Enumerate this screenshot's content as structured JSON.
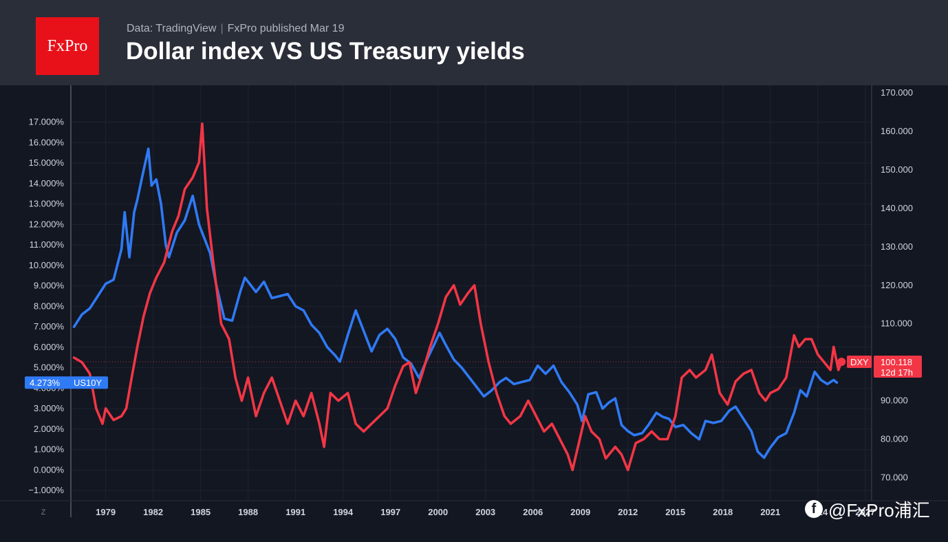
{
  "header": {
    "logo": "FxPro",
    "source": "Data: TradingView",
    "published": "FxPro published Mar 19",
    "title": "Dollar index VS US Treasury yields"
  },
  "watermark": {
    "text": "@FxPro浦汇",
    "icon": "facebook-icon"
  },
  "zoom_button": "Z",
  "chart_data": {
    "type": "line",
    "title": "Dollar index VS US Treasury yields",
    "left_axis": {
      "ticks": [
        "17.000%",
        "16.000%",
        "15.000%",
        "14.000%",
        "13.000%",
        "12.000%",
        "11.000%",
        "10.000%",
        "9.000%",
        "8.000%",
        "7.000%",
        "6.000%",
        "5.000%",
        "4.000%",
        "3.000%",
        "2.000%",
        "1.000%",
        "0.000%",
        "−1.000%"
      ],
      "range": [
        -1.5,
        18.8
      ]
    },
    "right_axis": {
      "ticks": [
        "170.000",
        "160.000",
        "150.000",
        "140.000",
        "130.000",
        "120.000",
        "110.000",
        "100.000",
        "90.000",
        "80.000",
        "70.000"
      ],
      "range": [
        64,
        172
      ]
    },
    "x_ticks": [
      "1979",
      "1982",
      "1985",
      "1988",
      "1991",
      "1994",
      "1997",
      "2000",
      "2003",
      "2006",
      "2009",
      "2012",
      "2015",
      "2018",
      "2021",
      "2024",
      "2027"
    ],
    "x_range": [
      1976.8,
      2027.4
    ],
    "reference_line_value": 100.118,
    "series": [
      {
        "name": "US10Y",
        "color": "#2f7af5",
        "axis": "left",
        "last_label": "4.273%",
        "x": [
          1977.0,
          1977.5,
          1978.0,
          1978.5,
          1979.0,
          1979.5,
          1980.0,
          1980.2,
          1980.5,
          1980.8,
          1981.0,
          1981.3,
          1981.7,
          1981.9,
          1982.2,
          1982.5,
          1982.8,
          1983.0,
          1983.5,
          1984.0,
          1984.5,
          1984.9,
          1985.3,
          1985.6,
          1986.0,
          1986.5,
          1987.0,
          1987.5,
          1987.8,
          1988.5,
          1989.0,
          1989.5,
          1990.0,
          1990.5,
          1991.0,
          1991.5,
          1992.0,
          1992.5,
          1993.0,
          1993.5,
          1993.8,
          1994.3,
          1994.8,
          1995.3,
          1995.8,
          1996.3,
          1996.8,
          1997.3,
          1997.8,
          1998.3,
          1998.8,
          1999.3,
          1999.8,
          2000.1,
          2000.5,
          2001.0,
          2001.5,
          2002.0,
          2002.5,
          2002.9,
          2003.4,
          2003.9,
          2004.3,
          2004.8,
          2005.3,
          2005.8,
          2006.3,
          2006.8,
          2007.3,
          2007.8,
          2008.3,
          2008.8,
          2009.1,
          2009.5,
          2010.0,
          2010.4,
          2010.8,
          2011.2,
          2011.6,
          2012.0,
          2012.4,
          2012.9,
          2013.3,
          2013.8,
          2014.2,
          2014.6,
          2015.0,
          2015.5,
          2016.0,
          2016.5,
          2016.9,
          2017.4,
          2017.9,
          2018.4,
          2018.8,
          2019.3,
          2019.8,
          2020.2,
          2020.6,
          2021.0,
          2021.5,
          2022.0,
          2022.5,
          2022.9,
          2023.3,
          2023.8,
          2024.2,
          2024.6,
          2025.0,
          2025.2
        ],
        "values": [
          7.0,
          7.6,
          7.9,
          8.5,
          9.1,
          9.3,
          10.8,
          12.6,
          10.4,
          12.6,
          13.2,
          14.3,
          15.7,
          13.9,
          14.2,
          13.0,
          11.0,
          10.4,
          11.6,
          12.2,
          13.4,
          12.0,
          11.2,
          10.6,
          9.0,
          7.4,
          7.3,
          8.7,
          9.4,
          8.7,
          9.2,
          8.4,
          8.5,
          8.6,
          8.0,
          7.8,
          7.1,
          6.7,
          6.0,
          5.6,
          5.3,
          6.6,
          7.8,
          6.8,
          5.8,
          6.6,
          6.9,
          6.4,
          5.5,
          5.2,
          4.5,
          5.4,
          6.2,
          6.7,
          6.1,
          5.4,
          5.0,
          4.5,
          4.0,
          3.6,
          3.9,
          4.3,
          4.5,
          4.2,
          4.3,
          4.4,
          5.1,
          4.7,
          5.1,
          4.3,
          3.8,
          3.2,
          2.4,
          3.7,
          3.8,
          3.0,
          3.3,
          3.5,
          2.2,
          1.9,
          1.7,
          1.8,
          2.2,
          2.8,
          2.6,
          2.5,
          2.1,
          2.2,
          1.8,
          1.5,
          2.4,
          2.3,
          2.4,
          2.9,
          3.1,
          2.5,
          1.9,
          0.9,
          0.6,
          1.1,
          1.6,
          1.8,
          2.8,
          3.9,
          3.6,
          4.8,
          4.4,
          4.2,
          4.4,
          4.273
        ]
      },
      {
        "name": "DXY",
        "color": "#f23645",
        "axis": "right",
        "last_label": "100.118",
        "countdown": "12d 17h",
        "x": [
          1977.0,
          1977.5,
          1978.0,
          1978.4,
          1978.8,
          1979.0,
          1979.5,
          1980.0,
          1980.3,
          1980.6,
          1981.0,
          1981.4,
          1981.8,
          1982.2,
          1982.7,
          1983.2,
          1983.6,
          1984.0,
          1984.5,
          1984.9,
          1985.1,
          1985.4,
          1985.8,
          1986.3,
          1986.8,
          1987.2,
          1987.6,
          1988.0,
          1988.5,
          1989.0,
          1989.5,
          1990.0,
          1990.5,
          1991.0,
          1991.5,
          1992.0,
          1992.5,
          1992.8,
          1993.2,
          1993.7,
          1994.3,
          1994.8,
          1995.3,
          1995.8,
          1996.3,
          1996.8,
          1997.3,
          1997.8,
          1998.2,
          1998.6,
          1999.0,
          1999.5,
          2000.0,
          2000.5,
          2001.0,
          2001.4,
          2001.9,
          2002.3,
          2002.7,
          2003.2,
          2003.7,
          2004.2,
          2004.6,
          2005.2,
          2005.7,
          2006.2,
          2006.7,
          2007.2,
          2007.7,
          2008.2,
          2008.5,
          2008.9,
          2009.3,
          2009.7,
          2010.2,
          2010.6,
          2011.2,
          2011.6,
          2012.0,
          2012.5,
          2013.0,
          2013.5,
          2014.0,
          2014.5,
          2015.0,
          2015.4,
          2015.9,
          2016.3,
          2016.9,
          2017.3,
          2017.8,
          2018.3,
          2018.8,
          2019.3,
          2019.8,
          2020.3,
          2020.7,
          2021.0,
          2021.5,
          2022.0,
          2022.5,
          2022.8,
          2023.2,
          2023.6,
          2024.0,
          2024.4,
          2024.8,
          2025.0,
          2025.3,
          2025.5
        ],
        "values": [
          101.2,
          100,
          97,
          88,
          84,
          88,
          85,
          86,
          88,
          95,
          104,
          112,
          118,
          122,
          126,
          134,
          138,
          145,
          148,
          152,
          162,
          140,
          126,
          110,
          106,
          96,
          90,
          96,
          86,
          92,
          96,
          90,
          84,
          90,
          86,
          92,
          84,
          78,
          92,
          90,
          92,
          84,
          82,
          84,
          86,
          88,
          94,
          99,
          100,
          92,
          97,
          104,
          110,
          117,
          120,
          115,
          118,
          120,
          110,
          100,
          92,
          86,
          84,
          86,
          90,
          86,
          82,
          84,
          80,
          76,
          72,
          79,
          86,
          82,
          80,
          75,
          78,
          76,
          72,
          79,
          80,
          82,
          80,
          80,
          86,
          96,
          98,
          96,
          98,
          102,
          92,
          89,
          95,
          97,
          98,
          92,
          90,
          92,
          93,
          96,
          107,
          104,
          106,
          106,
          102,
          100,
          98,
          104,
          98,
          100.118
        ]
      }
    ],
    "grid": true,
    "legend": "none"
  }
}
